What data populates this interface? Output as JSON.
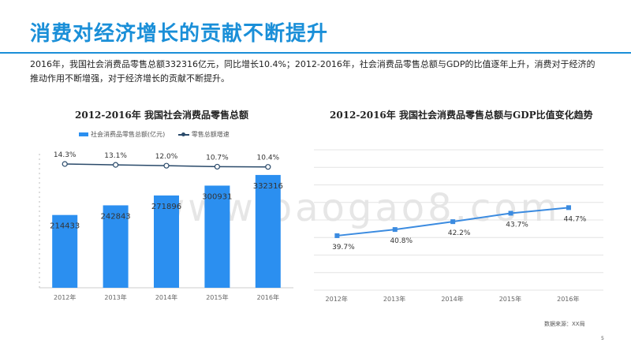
{
  "page": {
    "title": "消费对经济增长的贡献不断提升",
    "description": "2016年，我国社会消费品零售总额332316亿元，同比增长10.4%；2012-2016年，社会消费品零售总额与GDP的比值逐年上升，消费对于经济的推动作用不断增强，对于经济增长的贡献不断提升。",
    "source": "数据来源：XX局",
    "page_number": "5",
    "watermark": "www.baogao8.com"
  },
  "colors": {
    "accent": "#1a8fd8",
    "bar": "#2b8ff0",
    "growth_line": "#2a4a6a",
    "ratio_line": "#3b8be0"
  },
  "chart_data": [
    {
      "type": "bar",
      "title": "2012-2016年  我国社会消费品零售总额",
      "categories": [
        "2012年",
        "2013年",
        "2014年",
        "2015年",
        "2016年"
      ],
      "series": [
        {
          "name": "社会消费品零售总额(亿元)",
          "type": "bar",
          "values": [
            214433,
            242843,
            271896,
            300931,
            332316
          ]
        },
        {
          "name": "零售总额增速",
          "type": "line",
          "values": [
            14.3,
            13.1,
            12.0,
            10.7,
            10.4
          ],
          "labels": [
            "14.3%",
            "13.1%",
            "12.0%",
            "10.7%",
            "10.4%"
          ]
        }
      ],
      "bar_labels": [
        "214433",
        "242843",
        "271896",
        "300931",
        "332316"
      ],
      "legend": "top",
      "grid": false
    },
    {
      "type": "line",
      "title": "2012-2016年  我国社会消费品零售总额与GDP比值变化趋势",
      "categories": [
        "2012年",
        "2013年",
        "2014年",
        "2015年",
        "2016年"
      ],
      "series": [
        {
          "values": [
            39.7,
            40.8,
            42.2,
            43.7,
            44.7
          ],
          "labels": [
            "39.7%",
            "40.8%",
            "42.2%",
            "43.7%",
            "44.7%"
          ]
        }
      ],
      "legend": "none",
      "grid": true
    }
  ]
}
